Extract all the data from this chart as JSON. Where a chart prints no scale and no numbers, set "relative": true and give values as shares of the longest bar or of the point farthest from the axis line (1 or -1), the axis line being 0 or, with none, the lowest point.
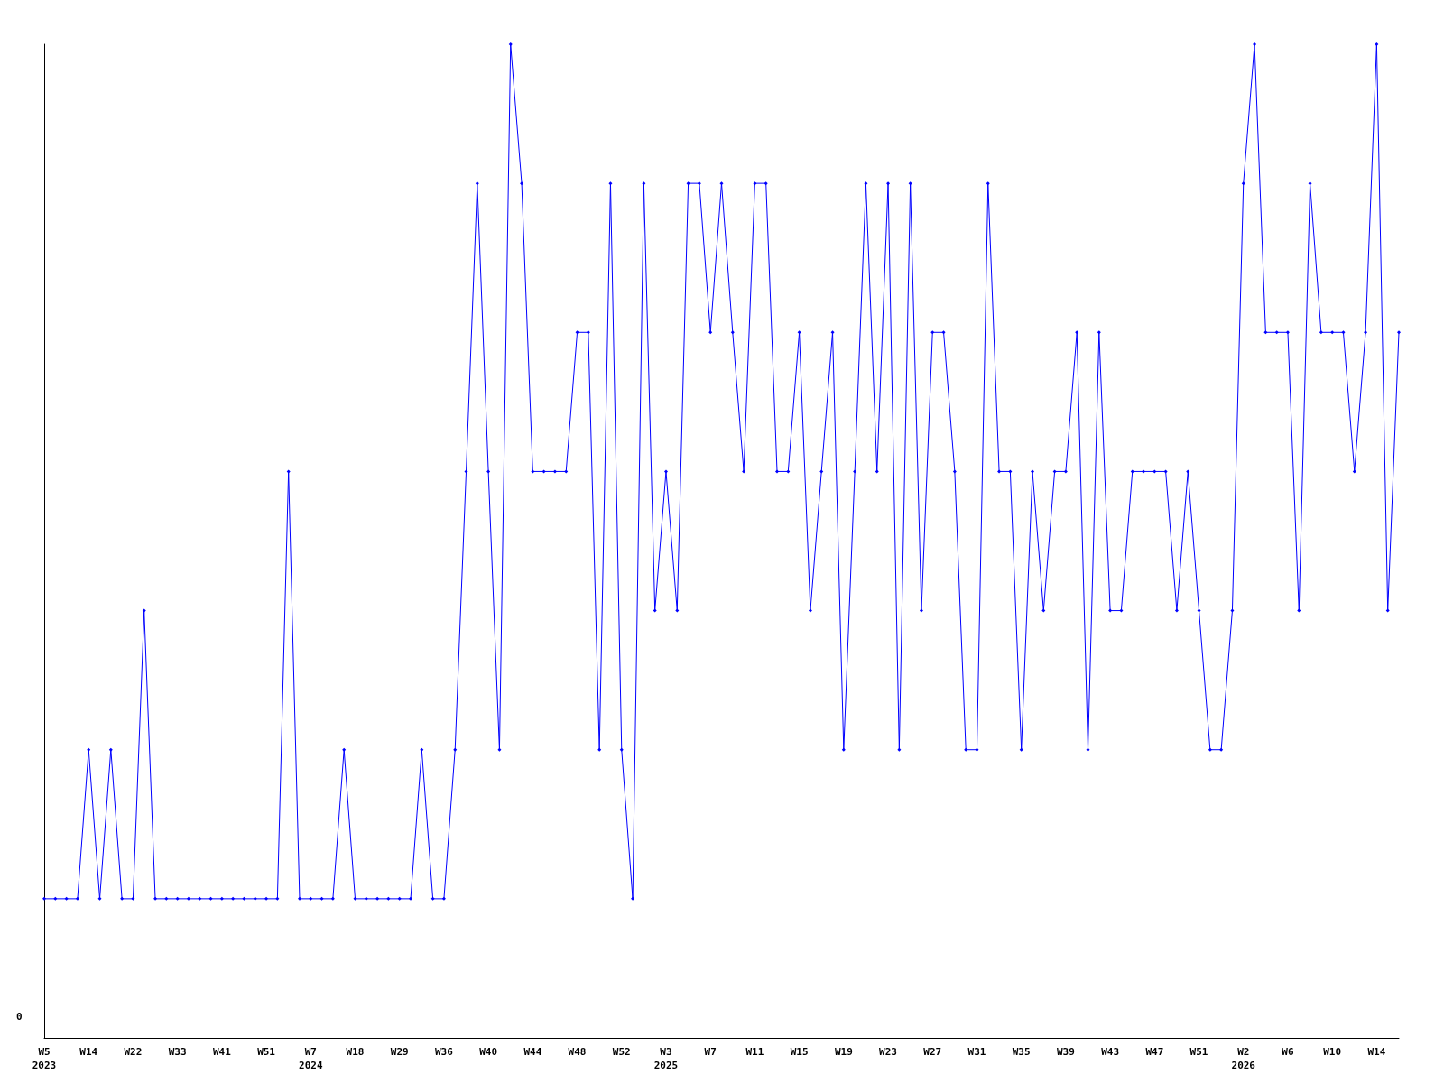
{
  "chart_data": {
    "type": "line",
    "relative": true,
    "annotations": [
      "0"
    ],
    "marker": "diamond",
    "line_style": "solid",
    "categories": [
      "W5\n2023",
      null,
      null,
      null,
      "W14",
      null,
      null,
      null,
      "W22",
      null,
      null,
      null,
      "W33",
      null,
      null,
      null,
      "W41",
      null,
      null,
      null,
      "W51",
      null,
      null,
      null,
      "W7\n2024",
      null,
      null,
      null,
      "W18",
      null,
      null,
      null,
      "W29",
      null,
      null,
      null,
      "W36",
      null,
      null,
      null,
      "W40",
      null,
      null,
      null,
      "W44",
      null,
      null,
      null,
      "W48",
      null,
      null,
      null,
      "W52",
      null,
      null,
      null,
      "W3\n2025",
      null,
      null,
      null,
      "W7",
      null,
      null,
      null,
      "W11",
      null,
      null,
      null,
      "W15",
      null,
      null,
      null,
      "W19",
      null,
      null,
      null,
      "W23",
      null,
      null,
      null,
      "W27",
      null,
      null,
      null,
      "W31",
      null,
      null,
      null,
      "W35",
      null,
      null,
      null,
      "W39",
      null,
      null,
      null,
      "W43",
      null,
      null,
      null,
      "W47",
      null,
      null,
      null,
      "W51",
      null,
      null,
      null,
      "W2\n2026",
      null,
      null,
      null,
      "W6",
      null,
      null,
      null,
      "W10",
      null,
      null,
      null,
      "W14",
      null,
      null
    ],
    "series": [
      {
        "color": "#0000ff",
        "values": [
          0.14,
          0.14,
          0.14,
          0.14,
          0.29,
          0.14,
          0.29,
          0.14,
          0.14,
          0.43,
          0.14,
          0.14,
          0.14,
          0.14,
          0.14,
          0.14,
          0.14,
          0.14,
          0.14,
          0.14,
          0.14,
          0.14,
          0.57,
          0.14,
          0.14,
          0.14,
          0.14,
          0.29,
          0.14,
          0.14,
          0.14,
          0.14,
          0.14,
          0.14,
          0.29,
          0.14,
          0.14,
          0.29,
          0.57,
          0.86,
          0.57,
          0.29,
          1,
          0.86,
          0.57,
          0.57,
          0.57,
          0.57,
          0.71,
          0.71,
          0.29,
          0.86,
          0.29,
          0.14,
          0.86,
          0.43,
          0.57,
          0.43,
          0.86,
          0.86,
          0.71,
          0.86,
          0.71,
          0.57,
          0.86,
          0.86,
          0.57,
          0.57,
          0.71,
          0.43,
          0.57,
          0.71,
          0.29,
          0.57,
          0.86,
          0.57,
          0.86,
          0.29,
          0.86,
          0.43,
          0.71,
          0.71,
          0.57,
          0.29,
          0.29,
          0.86,
          0.57,
          0.57,
          0.29,
          0.57,
          0.43,
          0.57,
          0.57,
          0.71,
          0.29,
          0.71,
          0.43,
          0.43,
          0.57,
          0.57,
          0.57,
          0.57,
          0.43,
          0.57,
          0.43,
          0.29,
          0.29,
          0.43,
          0.86,
          1,
          0.71,
          0.71,
          0.71,
          0.43,
          0.86,
          0.71,
          0.71,
          0.71,
          0.57,
          0.71,
          1,
          0.43,
          0.71
        ]
      }
    ]
  }
}
